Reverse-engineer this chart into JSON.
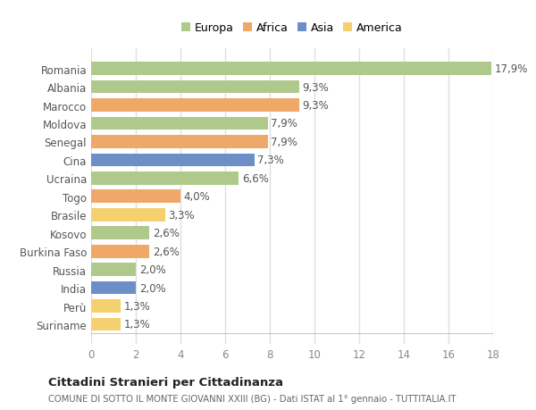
{
  "countries": [
    "Romania",
    "Albania",
    "Marocco",
    "Moldova",
    "Senegal",
    "Cina",
    "Ucraina",
    "Togo",
    "Brasile",
    "Kosovo",
    "Burkina Faso",
    "Russia",
    "India",
    "Perù",
    "Suriname"
  ],
  "values": [
    17.9,
    9.3,
    9.3,
    7.9,
    7.9,
    7.3,
    6.6,
    4.0,
    3.3,
    2.6,
    2.6,
    2.0,
    2.0,
    1.3,
    1.3
  ],
  "labels": [
    "17,9%",
    "9,3%",
    "9,3%",
    "7,9%",
    "7,9%",
    "7,3%",
    "6,6%",
    "4,0%",
    "3,3%",
    "2,6%",
    "2,6%",
    "2,0%",
    "2,0%",
    "1,3%",
    "1,3%"
  ],
  "colors": [
    "#aec98a",
    "#aec98a",
    "#f0a868",
    "#aec98a",
    "#f0a868",
    "#6c8fc7",
    "#aec98a",
    "#f0a868",
    "#f5d06e",
    "#aec98a",
    "#f0a868",
    "#aec98a",
    "#6c8fc7",
    "#f5d06e",
    "#f5d06e"
  ],
  "legend_labels": [
    "Europa",
    "Africa",
    "Asia",
    "America"
  ],
  "legend_colors": [
    "#aec98a",
    "#f0a868",
    "#6c8fc7",
    "#f5d06e"
  ],
  "title": "Cittadini Stranieri per Cittadinanza",
  "subtitle": "COMUNE DI SOTTO IL MONTE GIOVANNI XXIII (BG) - Dati ISTAT al 1° gennaio - TUTTITALIA.IT",
  "xlim": [
    0,
    18
  ],
  "xticks": [
    0,
    2,
    4,
    6,
    8,
    10,
    12,
    14,
    16,
    18
  ],
  "bg_color": "#ffffff",
  "plot_bg_color": "#ffffff",
  "grid_color": "#e0e0e0",
  "label_fontsize": 8.5,
  "tick_fontsize": 8.5,
  "bar_height": 0.72
}
